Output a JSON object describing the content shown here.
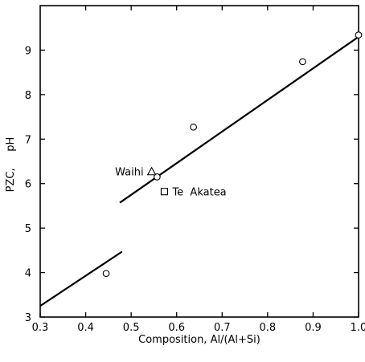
{
  "chart_data": {
    "type": "scatter",
    "xlabel": "Composition,  Al/(Al+Si)",
    "ylabel": "PZC,     pH",
    "xlim": [
      0.3,
      1.0
    ],
    "ylim": [
      3,
      10
    ],
    "xticks": [
      0.3,
      0.4,
      0.5,
      0.6,
      0.7,
      0.8,
      0.9,
      1.0
    ],
    "xtick_labels": [
      "0.3",
      "0.4",
      "0.5",
      "0.6",
      "0.7",
      "0.8",
      "0.9",
      "1.0"
    ],
    "yticks": [
      3,
      4,
      5,
      6,
      7,
      8,
      9
    ],
    "ytick_labels": [
      "3",
      "4",
      "5",
      "6",
      "7",
      "8",
      "9"
    ],
    "grid": false,
    "points": [
      {
        "x": 0.445,
        "y": 3.98
      },
      {
        "x": 0.557,
        "y": 6.15
      },
      {
        "x": 0.637,
        "y": 7.27
      },
      {
        "x": 0.877,
        "y": 8.74
      },
      {
        "x": 1.0,
        "y": 9.34
      }
    ],
    "lines": [
      {
        "x": [
          0.3,
          0.48
        ],
        "y": [
          3.25,
          4.47
        ]
      },
      {
        "x": [
          0.475,
          1.0
        ],
        "y": [
          5.57,
          9.3
        ]
      }
    ],
    "annotations": [
      {
        "text": "Waihi",
        "marker": "triangle",
        "x": 0.545,
        "y": 6.27
      },
      {
        "text": "Te  Akatea",
        "marker": "square",
        "x": 0.573,
        "y": 5.82
      }
    ]
  }
}
